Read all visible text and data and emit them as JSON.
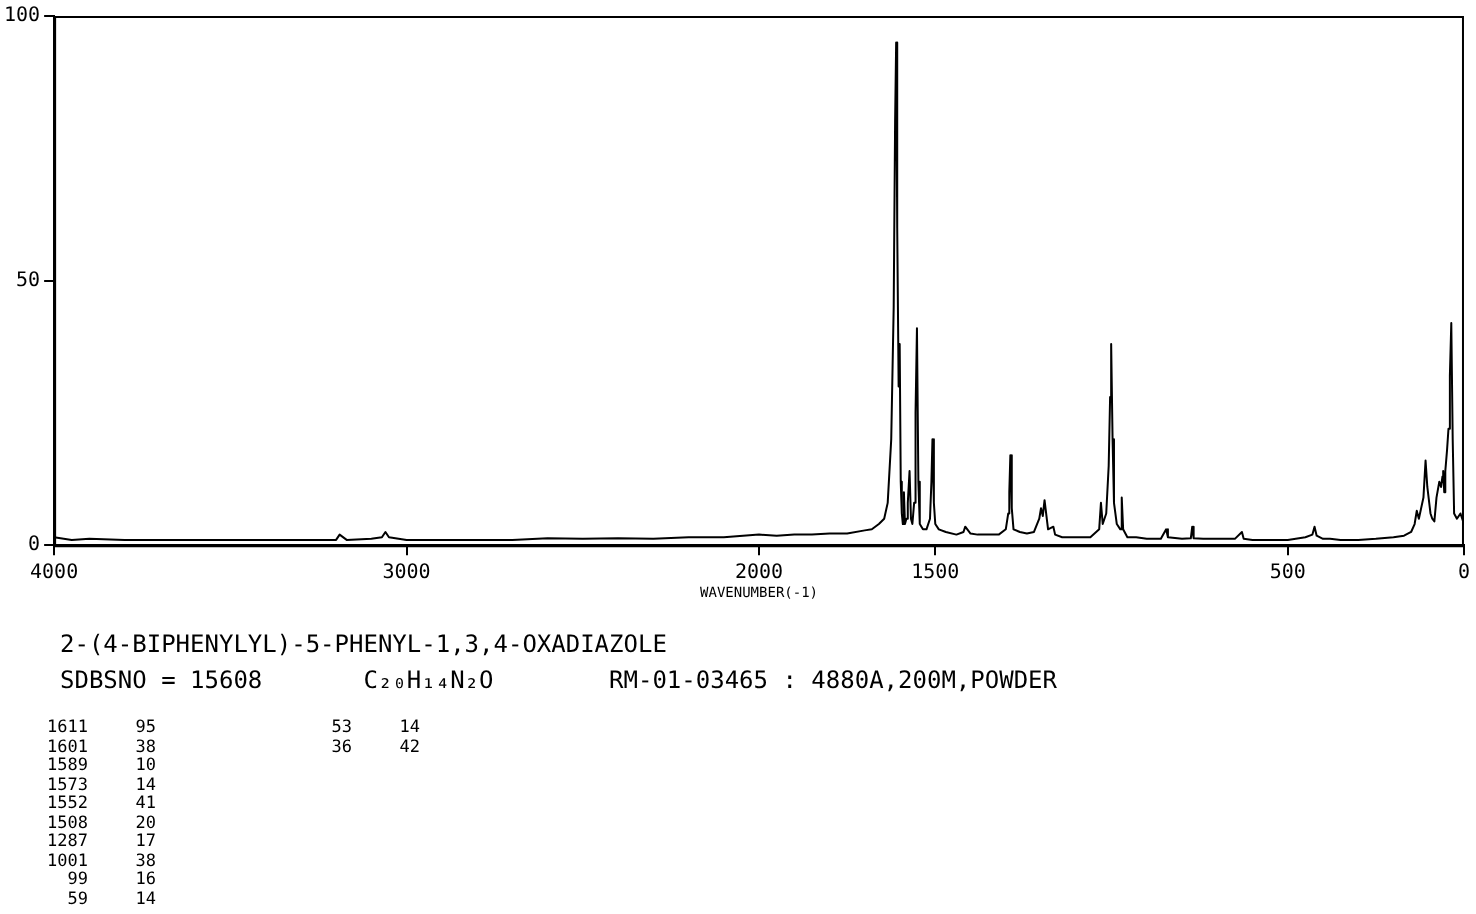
{
  "chart_data": {
    "type": "line",
    "title": "2-(4-BIPHENYLYL)-5-PHENYL-1,3,4-OXADIAZOLE",
    "subtitle": "SDBSNO = 15608       C₂₀H₁₄N₂O        RM-01-03465 : 4880A,200M,POWDER",
    "xlabel": "WAVENUMBER(-1)",
    "xlim": [
      4000,
      0
    ],
    "xticks": [
      4000,
      3000,
      2000,
      1500,
      500,
      0
    ],
    "ylim": [
      0,
      100
    ],
    "yticks": [
      0,
      50,
      100
    ],
    "marker": "none",
    "line_style": "solid",
    "series": [
      {
        "color": "#000000",
        "x": [
          4000,
          3950,
          3900,
          3800,
          3700,
          3600,
          3500,
          3400,
          3300,
          3200,
          3190,
          3170,
          3100,
          3070,
          3060,
          3050,
          3000,
          2900,
          2800,
          2700,
          2600,
          2500,
          2400,
          2300,
          2200,
          2100,
          2000,
          1950,
          1900,
          1850,
          1800,
          1750,
          1700,
          1680,
          1660,
          1645,
          1635,
          1625,
          1618,
          1614,
          1611,
          1608,
          1604,
          1601,
          1598,
          1595,
          1592,
          1589,
          1586,
          1582,
          1578,
          1573,
          1569,
          1565,
          1560,
          1556,
          1552,
          1548,
          1544,
          1535,
          1525,
          1515,
          1511,
          1508,
          1504,
          1500,
          1490,
          1470,
          1440,
          1420,
          1415,
          1400,
          1380,
          1350,
          1320,
          1300,
          1293,
          1290,
          1287,
          1283,
          1278,
          1260,
          1240,
          1220,
          1205,
          1200,
          1195,
          1190,
          1180,
          1165,
          1160,
          1140,
          1100,
          1060,
          1035,
          1030,
          1025,
          1015,
          1008,
          1004,
          1001,
          997,
          993,
          985,
          975,
          971,
          967,
          955,
          930,
          900,
          860,
          845,
          840,
          800,
          775,
          771,
          767,
          740,
          700,
          650,
          630,
          625,
          600,
          550,
          500,
          450,
          430,
          424,
          418,
          400,
          380,
          350,
          300,
          250,
          200,
          170,
          150,
          140,
          134,
          128,
          115,
          109,
          104,
          95,
          90,
          84,
          78,
          70,
          65,
          61,
          59,
          56,
          53,
          48,
          44,
          40,
          36,
          32,
          28,
          20,
          10,
          5,
          0
        ],
        "values": [
          1.5,
          1,
          1.2,
          1,
          1,
          1,
          1,
          1,
          1,
          1,
          2,
          1,
          1.2,
          1.5,
          2.5,
          1.5,
          1,
          1,
          1,
          1,
          1.3,
          1.2,
          1.3,
          1.2,
          1.5,
          1.5,
          2,
          1.8,
          2,
          2,
          2.2,
          2.2,
          2.8,
          3,
          4,
          5,
          8,
          20,
          45,
          80,
          95,
          60,
          30,
          38,
          12,
          6,
          4,
          10,
          4,
          5,
          8,
          14,
          5,
          4,
          8,
          25,
          41,
          12,
          4,
          3,
          3,
          5,
          12,
          20,
          8,
          4,
          3,
          2.5,
          2,
          2.5,
          3.5,
          2.2,
          2,
          2,
          2,
          3,
          6,
          10,
          17,
          7,
          3,
          2.5,
          2.2,
          2.5,
          5,
          7,
          5.5,
          8.5,
          3,
          3.5,
          2,
          1.5,
          1.5,
          1.5,
          3,
          8,
          4,
          6,
          15,
          28,
          38,
          20,
          8,
          4,
          3,
          9,
          3,
          1.5,
          1.5,
          1.2,
          1.2,
          3,
          1.5,
          1.2,
          1.3,
          3.5,
          1.3,
          1.2,
          1.2,
          1.2,
          2.5,
          1.2,
          1,
          1,
          1,
          1.5,
          2,
          3.5,
          1.8,
          1.2,
          1.2,
          1,
          1,
          1.2,
          1.5,
          1.8,
          2.5,
          4,
          6.5,
          5,
          9,
          16,
          11,
          6,
          5,
          4.5,
          9,
          12,
          11,
          13,
          14,
          10,
          14,
          18,
          22,
          32,
          42,
          20,
          6,
          5,
          6,
          5,
          4
        ]
      }
    ],
    "annotations": [
      "1611 95",
      "1601 38",
      "1589 10",
      "1573 14",
      "1552 41",
      "1508 20",
      "1287 17",
      "1001 38",
      "99 16",
      "59 14",
      "53 14",
      "36 42"
    ]
  }
}
